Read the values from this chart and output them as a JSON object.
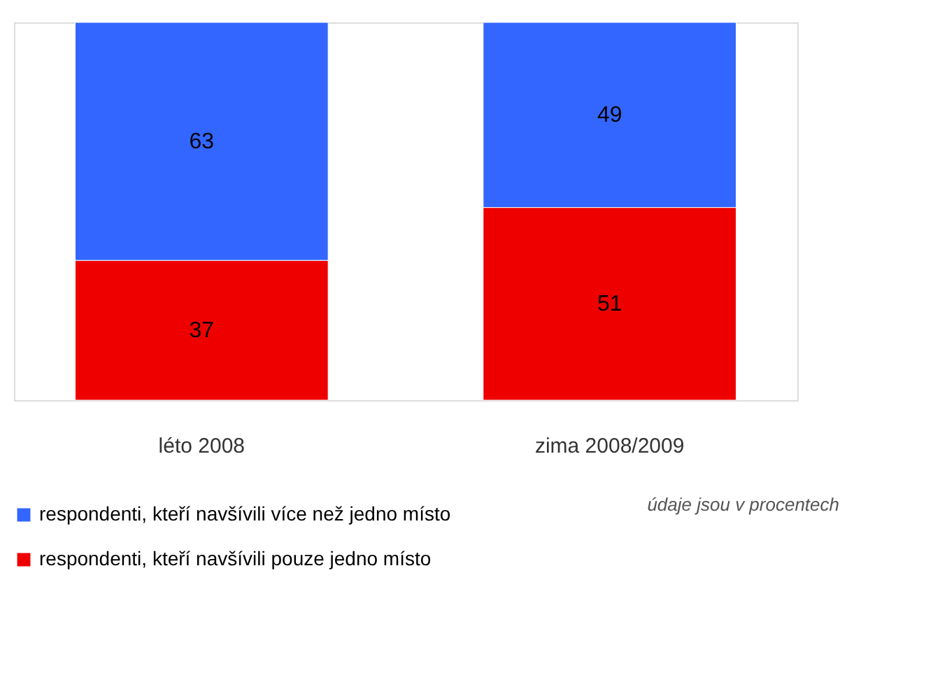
{
  "chart_data": {
    "type": "bar",
    "stacked": true,
    "categories": [
      "léto 2008",
      "zima 2008/2009"
    ],
    "series": [
      {
        "name": "respondenti, kteří navšívili pouze jedno místo",
        "color": "#ee0000",
        "values": [
          37,
          51
        ]
      },
      {
        "name": "respondenti, kteří navšívili více než jedno místo",
        "color": "#3366ff",
        "values": [
          63,
          49
        ]
      }
    ],
    "data_labels": true,
    "tick_labels": "x",
    "legend": "bottom",
    "annotations": [
      "údaje jsou v procentech"
    ]
  }
}
